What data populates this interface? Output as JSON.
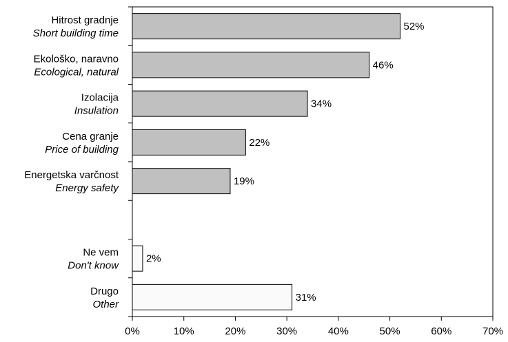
{
  "chart_data": {
    "type": "bar",
    "orientation": "horizontal",
    "categories": [
      {
        "label": "Hitrost gradnje",
        "sublabel": "Short building time",
        "value": 52,
        "value_label": "52%",
        "fill": "#c0c0c0"
      },
      {
        "label": "Ekološko, naravno",
        "sublabel": "Ecological, natural",
        "value": 46,
        "value_label": "46%",
        "fill": "#c0c0c0"
      },
      {
        "label": "Izolacija",
        "sublabel": "Insulation",
        "value": 34,
        "value_label": "34%",
        "fill": "#c0c0c0"
      },
      {
        "label": "Cena granje",
        "sublabel": "Price of building",
        "value": 22,
        "value_label": "22%",
        "fill": "#c0c0c0"
      },
      {
        "label": "Energetska varčnost",
        "sublabel": "Energy safety",
        "value": 19,
        "value_label": "19%",
        "fill": "#c0c0c0"
      },
      {
        "label": "",
        "sublabel": "",
        "value": null,
        "value_label": "",
        "fill": ""
      },
      {
        "label": "Ne vem",
        "sublabel": "Don't know",
        "value": 2,
        "value_label": "2%",
        "fill": "#fafafa"
      },
      {
        "label": "Drugo",
        "sublabel": "Other",
        "value": 31,
        "value_label": "31%",
        "fill": "#fafafa"
      }
    ],
    "xlim": [
      0,
      70
    ],
    "xticks": [
      0,
      10,
      20,
      30,
      40,
      50,
      60,
      70
    ],
    "xtick_labels": [
      "0%",
      "10%",
      "20%",
      "30%",
      "40%",
      "50%",
      "60%",
      "70%"
    ],
    "grid": false,
    "legend": "none",
    "colors": {
      "main": "#c0c0c0",
      "other": "#fafafa",
      "stroke": "#000000"
    }
  }
}
